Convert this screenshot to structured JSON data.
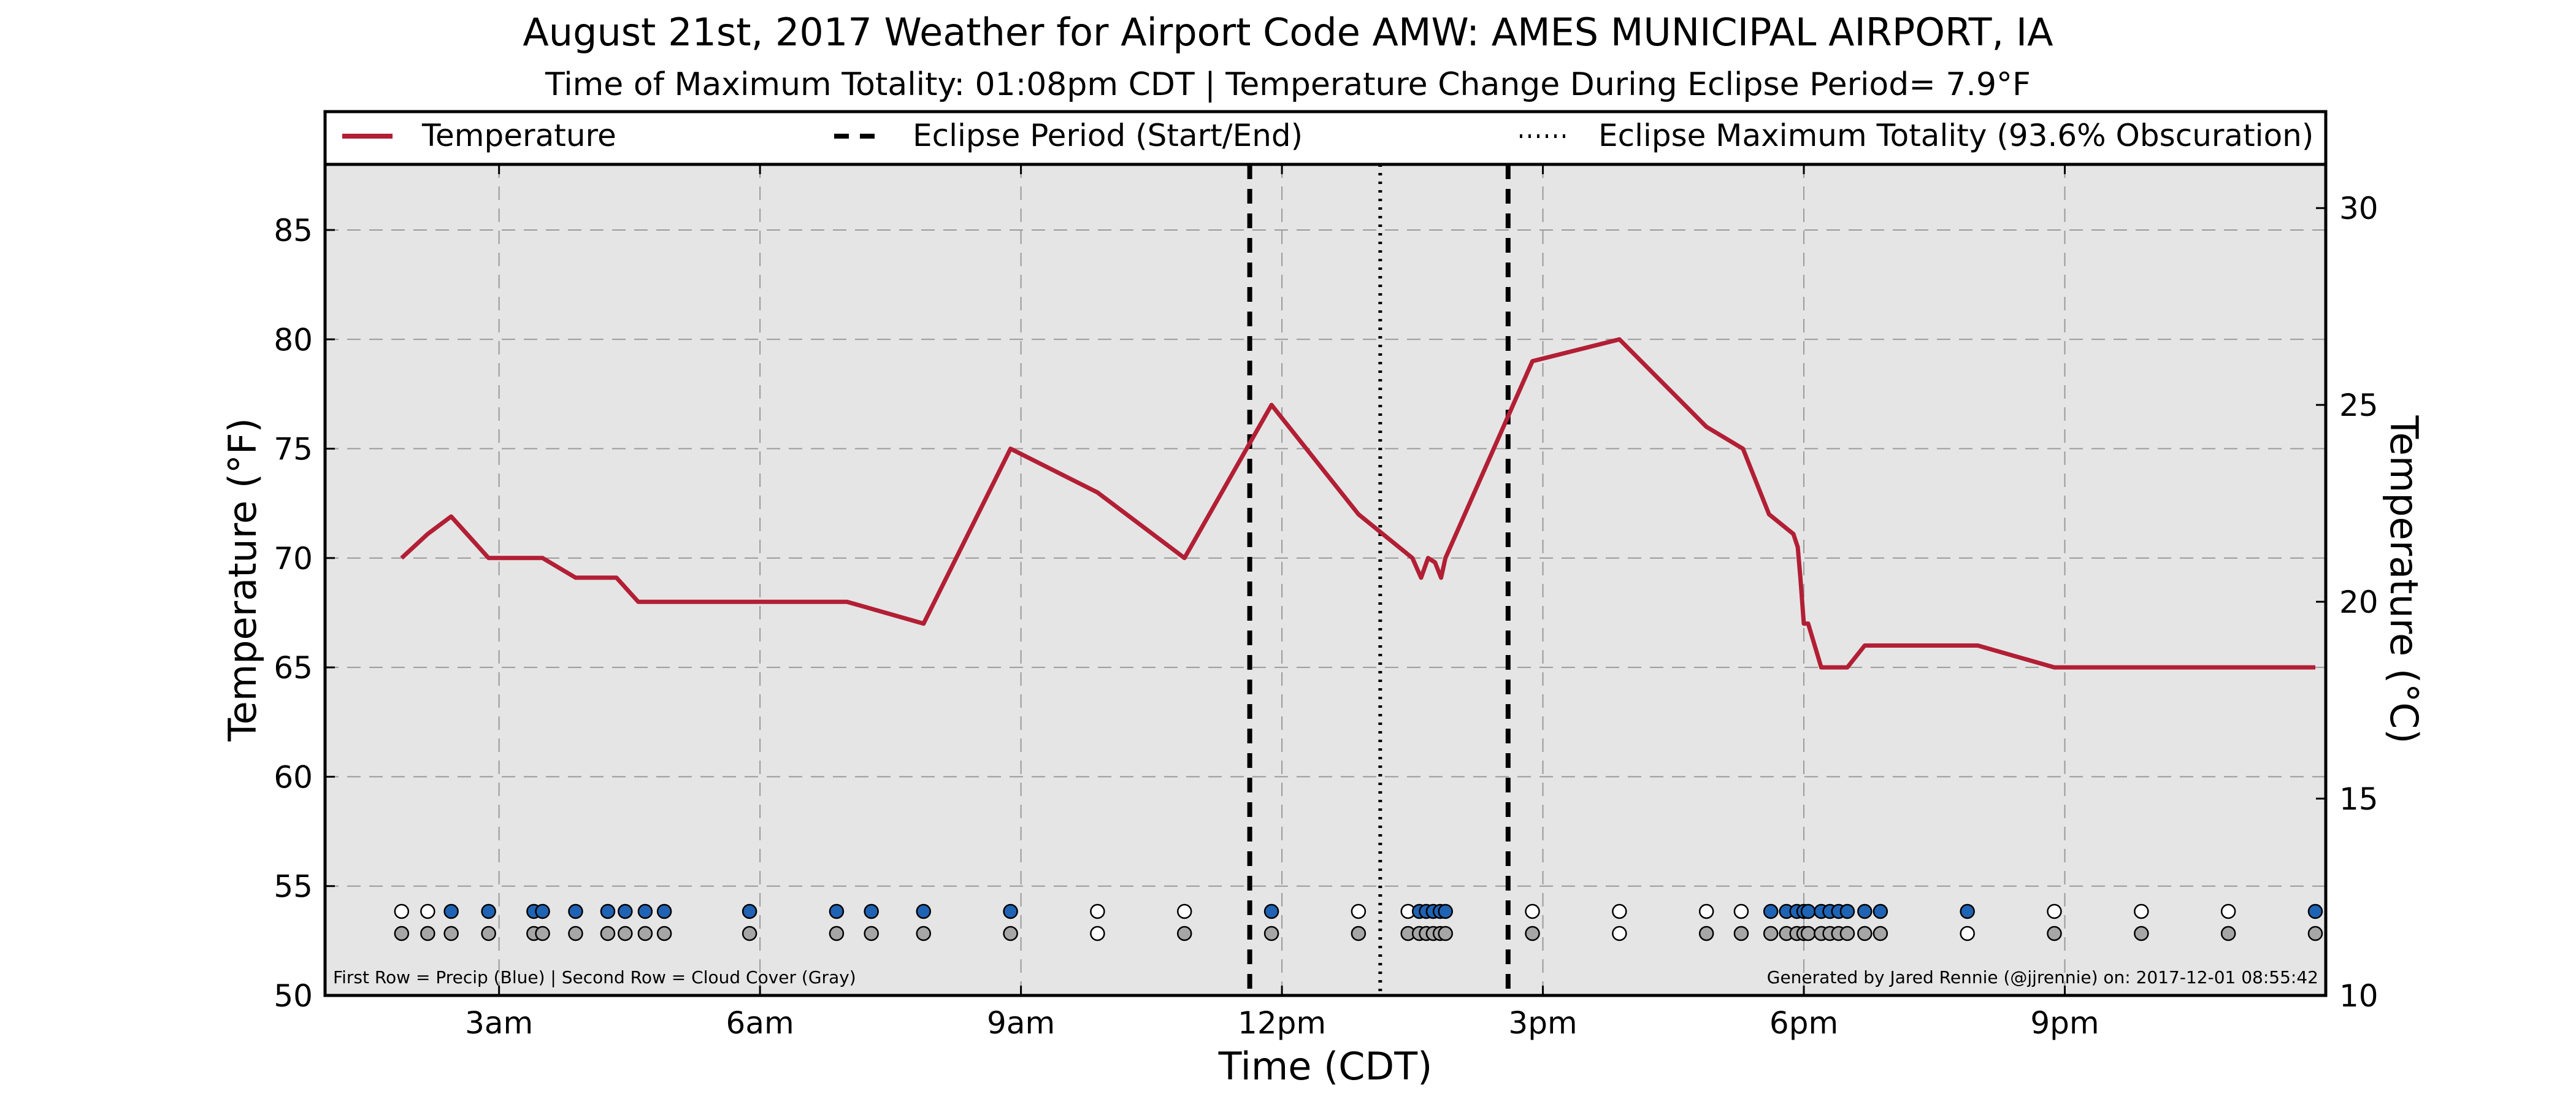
{
  "title": "August 21st, 2017 Weather for Airport Code AMW: AMES MUNICIPAL AIRPORT, IA",
  "subtitle": "Time of Maximum Totality: 01:08pm CDT | Temperature Change During Eclipse Period= 7.9°F",
  "footnote_left": "First Row = Precip (Blue) | Second Row = Cloud Cover (Gray)",
  "footnote_right": "Generated by Jared Rennie (@jjrennie) on: 2017-12-01 08:55:42",
  "legend": {
    "temperature": "Temperature",
    "eclipse_period": "Eclipse Period (Start/End)",
    "max_totality": "Eclipse Maximum Totality (93.6% Obscuration)"
  },
  "colors": {
    "temperature_line": "#b21f35",
    "plot_background": "#e5e5e5",
    "precip": "#1f63b4",
    "cloud": "#a6a6a6",
    "empty": "#ffffff"
  },
  "chart_data": {
    "type": "line",
    "xlabel": "Time (CDT)",
    "ylabel": "Temperature (°F)",
    "ylabel_right": "Temperature (°C)",
    "xlim": [
      1.0,
      24.0
    ],
    "ylim": [
      50,
      88
    ],
    "ylim_right_c": [
      10,
      31.11
    ],
    "x_ticks": [
      3,
      6,
      9,
      12,
      15,
      18,
      21
    ],
    "x_tick_labels": [
      "3am",
      "6am",
      "9am",
      "12pm",
      "3pm",
      "6pm",
      "9pm"
    ],
    "y_ticks": [
      50,
      55,
      60,
      65,
      70,
      75,
      80,
      85
    ],
    "y_ticks_right": [
      10,
      15,
      20,
      25,
      30
    ],
    "grid": true,
    "legend_position": "top",
    "eclipse_start": 11.63,
    "eclipse_end": 14.6,
    "max_totality": 13.13,
    "series": [
      {
        "name": "Temperature",
        "x": [
          1.88,
          2.18,
          2.45,
          2.88,
          3.5,
          3.88,
          4.35,
          4.6,
          5.0,
          6.0,
          7.0,
          7.88,
          8.88,
          9.88,
          10.88,
          11.88,
          12.88,
          13.5,
          13.6,
          13.68,
          13.76,
          13.83,
          13.88,
          14.88,
          15.88,
          16.88,
          17.3,
          17.6,
          17.88,
          17.93,
          17.96,
          18.0,
          18.05,
          18.2,
          18.5,
          18.7,
          20.0,
          20.88,
          21.88,
          23.88
        ],
        "y": [
          70,
          71.1,
          71.9,
          70,
          70,
          69.1,
          69.1,
          68,
          68,
          68,
          68,
          67,
          75,
          73,
          70,
          77,
          72,
          70,
          69.1,
          70,
          69.8,
          69.1,
          70,
          79,
          80,
          76,
          75,
          72,
          71.1,
          70.5,
          69.1,
          67,
          67,
          65,
          65,
          66,
          66,
          65,
          65,
          65
        ]
      }
    ],
    "precip_row_x": [
      1.88,
      2.18,
      2.45,
      2.88,
      3.4,
      3.5,
      3.88,
      4.25,
      4.45,
      4.68,
      4.9,
      5.88,
      6.88,
      7.28,
      7.88,
      8.88,
      9.88,
      10.88,
      11.88,
      12.88,
      13.45,
      13.58,
      13.66,
      13.74,
      13.82,
      13.88,
      14.88,
      15.88,
      16.88,
      17.28,
      17.62,
      17.8,
      17.92,
      18.0,
      18.05,
      18.2,
      18.3,
      18.4,
      18.5,
      18.7,
      18.88,
      19.88,
      20.88,
      21.88,
      22.88,
      23.88
    ],
    "precip_row_state": [
      "empty",
      "empty",
      "precip",
      "precip",
      "precip",
      "precip",
      "precip",
      "precip",
      "precip",
      "precip",
      "precip",
      "precip",
      "precip",
      "precip",
      "precip",
      "precip",
      "empty",
      "empty",
      "precip",
      "empty",
      "empty",
      "precip",
      "precip",
      "precip",
      "precip",
      "precip",
      "empty",
      "empty",
      "empty",
      "empty",
      "precip",
      "precip",
      "precip",
      "precip",
      "precip",
      "precip",
      "precip",
      "precip",
      "precip",
      "precip",
      "precip",
      "precip",
      "empty",
      "empty",
      "empty",
      "precip"
    ],
    "cloud_row_x": [
      1.88,
      2.18,
      2.45,
      2.88,
      3.4,
      3.5,
      3.88,
      4.25,
      4.45,
      4.68,
      4.9,
      5.88,
      6.88,
      7.28,
      7.88,
      8.88,
      9.88,
      10.88,
      11.88,
      12.88,
      13.45,
      13.58,
      13.66,
      13.74,
      13.82,
      13.88,
      14.88,
      15.88,
      16.88,
      17.28,
      17.62,
      17.8,
      17.92,
      18.0,
      18.05,
      18.2,
      18.3,
      18.4,
      18.5,
      18.7,
      18.88,
      19.88,
      20.88,
      21.88,
      22.88,
      23.88
    ],
    "cloud_row_state": [
      "cloud",
      "cloud",
      "cloud",
      "cloud",
      "cloud",
      "cloud",
      "cloud",
      "cloud",
      "cloud",
      "cloud",
      "cloud",
      "cloud",
      "cloud",
      "cloud",
      "cloud",
      "cloud",
      "empty",
      "cloud",
      "cloud",
      "cloud",
      "cloud",
      "cloud",
      "cloud",
      "cloud",
      "cloud",
      "cloud",
      "cloud",
      "empty",
      "cloud",
      "cloud",
      "cloud",
      "cloud",
      "cloud",
      "cloud",
      "cloud",
      "cloud",
      "cloud",
      "cloud",
      "cloud",
      "cloud",
      "cloud",
      "empty",
      "cloud",
      "cloud",
      "cloud",
      "cloud"
    ]
  }
}
